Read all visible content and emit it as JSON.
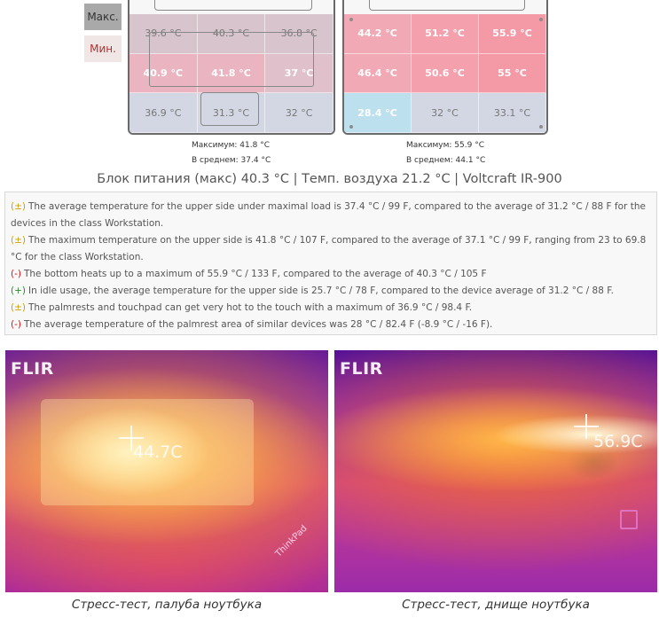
{
  "legend": {
    "max_label": "Макс.",
    "min_label": "Мин."
  },
  "upper_side": {
    "cells": [
      {
        "value": "39.6 °C",
        "color": "#d8c4cc"
      },
      {
        "value": "40.3 °C",
        "color": "#d8c4cc"
      },
      {
        "value": "36.8 °C",
        "color": "#d8c4cc"
      },
      {
        "value": "40.9 °C",
        "color": "#eab5c0"
      },
      {
        "value": "41.8 °C",
        "color": "#eab5c0"
      },
      {
        "value": "37 °C",
        "color": "#e0c0ca"
      },
      {
        "value": "36.9 °C",
        "color": "#d2d7e3"
      },
      {
        "value": "31.3 °C",
        "color": "#d2d7e3"
      },
      {
        "value": "32 °C",
        "color": "#d2d7e3"
      }
    ],
    "max_text": "Максимум: 41.8 °C",
    "avg_text": "В среднем: 37.4 °C"
  },
  "bottom_side": {
    "cells": [
      {
        "value": "44.2 °C",
        "color": "#f1a9b5"
      },
      {
        "value": "51.2 °C",
        "color": "#f4a0ad"
      },
      {
        "value": "55.9 °C",
        "color": "#f49aa7"
      },
      {
        "value": "46.4 °C",
        "color": "#f1a9b5"
      },
      {
        "value": "50.6 °C",
        "color": "#f4a0ad"
      },
      {
        "value": "55 °C",
        "color": "#f49aa7"
      },
      {
        "value": "28.4 °C",
        "color": "#bde0ef"
      },
      {
        "value": "32 °C",
        "color": "#d2d7e3"
      },
      {
        "value": "33.1 °C",
        "color": "#d2d7e3"
      }
    ],
    "max_text": "Максимум: 55.9 °C",
    "avg_text": "В среднем: 44.1 °C"
  },
  "summary": "Блок питания (макс)  40.3 °C | Темп. воздуха 21.2 °C | Voltcraft IR-900",
  "notes": [
    {
      "badge": "(±)",
      "kind": "neutral",
      "text": "The average temperature for the upper side under maximal load is 37.4 °C / 99 F, compared to the average of 31.2 °C / 88 F for the devices in the class Workstation."
    },
    {
      "badge": "(±)",
      "kind": "neutral",
      "text": "The maximum temperature on the upper side is 41.8 °C / 107 F, compared to the average of 37.1 °C / 99 F, ranging from 23 to 69.8 °C for the class Workstation."
    },
    {
      "badge": "(-)",
      "kind": "neg",
      "text": "The bottom heats up to a maximum of 55.9 °C / 133 F, compared to the average of 40.3 °C / 105 F"
    },
    {
      "badge": "(+)",
      "kind": "pos",
      "text": "In idle usage, the average temperature for the upper side is 25.7 °C / 78 F, compared to the device average of 31.2 °C / 88 F."
    },
    {
      "badge": "(±)",
      "kind": "neutral",
      "text": "The palmrests and touchpad can get very hot to the touch with a maximum of 36.9 °C / 98.4 F."
    },
    {
      "badge": "(-)",
      "kind": "neg",
      "text": "The average temperature of the palmrest area of similar devices was 28 °C / 82.4 F (-8.9 °C / -16 F)."
    }
  ],
  "thermal_left": {
    "brand": "FLIR",
    "readout": "44.7C",
    "caption": "Стресс-тест, палуба ноутбука",
    "brand_label": "ThinkPad"
  },
  "thermal_right": {
    "brand": "FLIR",
    "readout": "56.9C",
    "caption": "Стресс-тест, днище ноутбука"
  }
}
